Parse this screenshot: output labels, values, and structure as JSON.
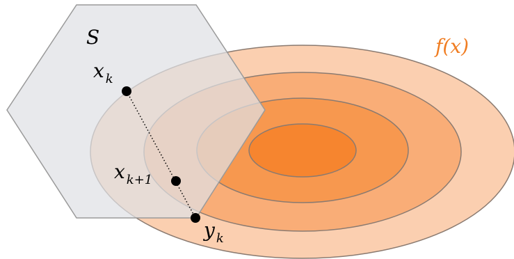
{
  "labels": {
    "set": "S",
    "function": "f(x)",
    "point_xk": {
      "base": "x",
      "sub": "k"
    },
    "point_xk1": {
      "base": "x",
      "sub": "k+1"
    },
    "point_yk": {
      "base": "y",
      "sub": "k"
    }
  },
  "colors": {
    "level_outer": "#fbcfb0",
    "level_2": "#f9ad77",
    "level_3": "#f7984f",
    "level_inner": "#f6852f",
    "contour_stroke": "#8a7a70",
    "set_fill": "#dfe1e4",
    "set_stroke": "#9a9a9a",
    "function_label": "#f07d22",
    "points": "#000000"
  }
}
